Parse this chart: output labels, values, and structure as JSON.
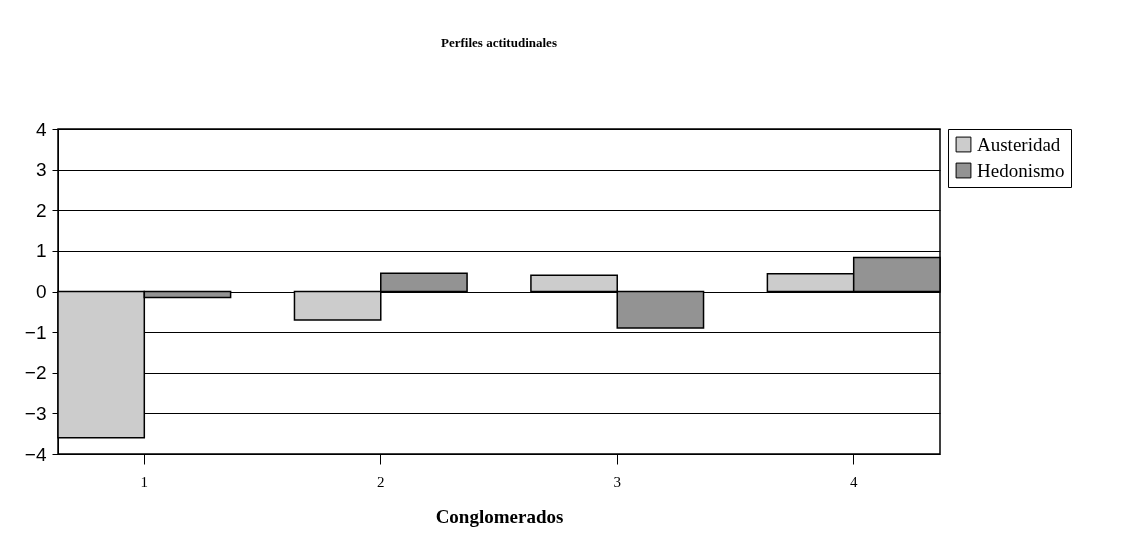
{
  "chart_data": {
    "type": "bar",
    "title": "Perfiles actitudinales",
    "xlabel": "Conglomerados",
    "categories": [
      "1",
      "2",
      "3",
      "4"
    ],
    "series": [
      {
        "name": "Austeridad",
        "color": "#cccccc",
        "values": [
          -3.6,
          -0.7,
          0.4,
          0.44
        ]
      },
      {
        "name": "Hedonismo",
        "color": "#939393",
        "values": [
          -0.15,
          0.45,
          -0.9,
          0.84
        ]
      }
    ],
    "ylim": [
      -4,
      4
    ],
    "yticks": [
      -4,
      -3,
      -2,
      -1,
      0,
      1,
      2,
      3,
      4
    ],
    "grid": "y",
    "legend": "right"
  }
}
